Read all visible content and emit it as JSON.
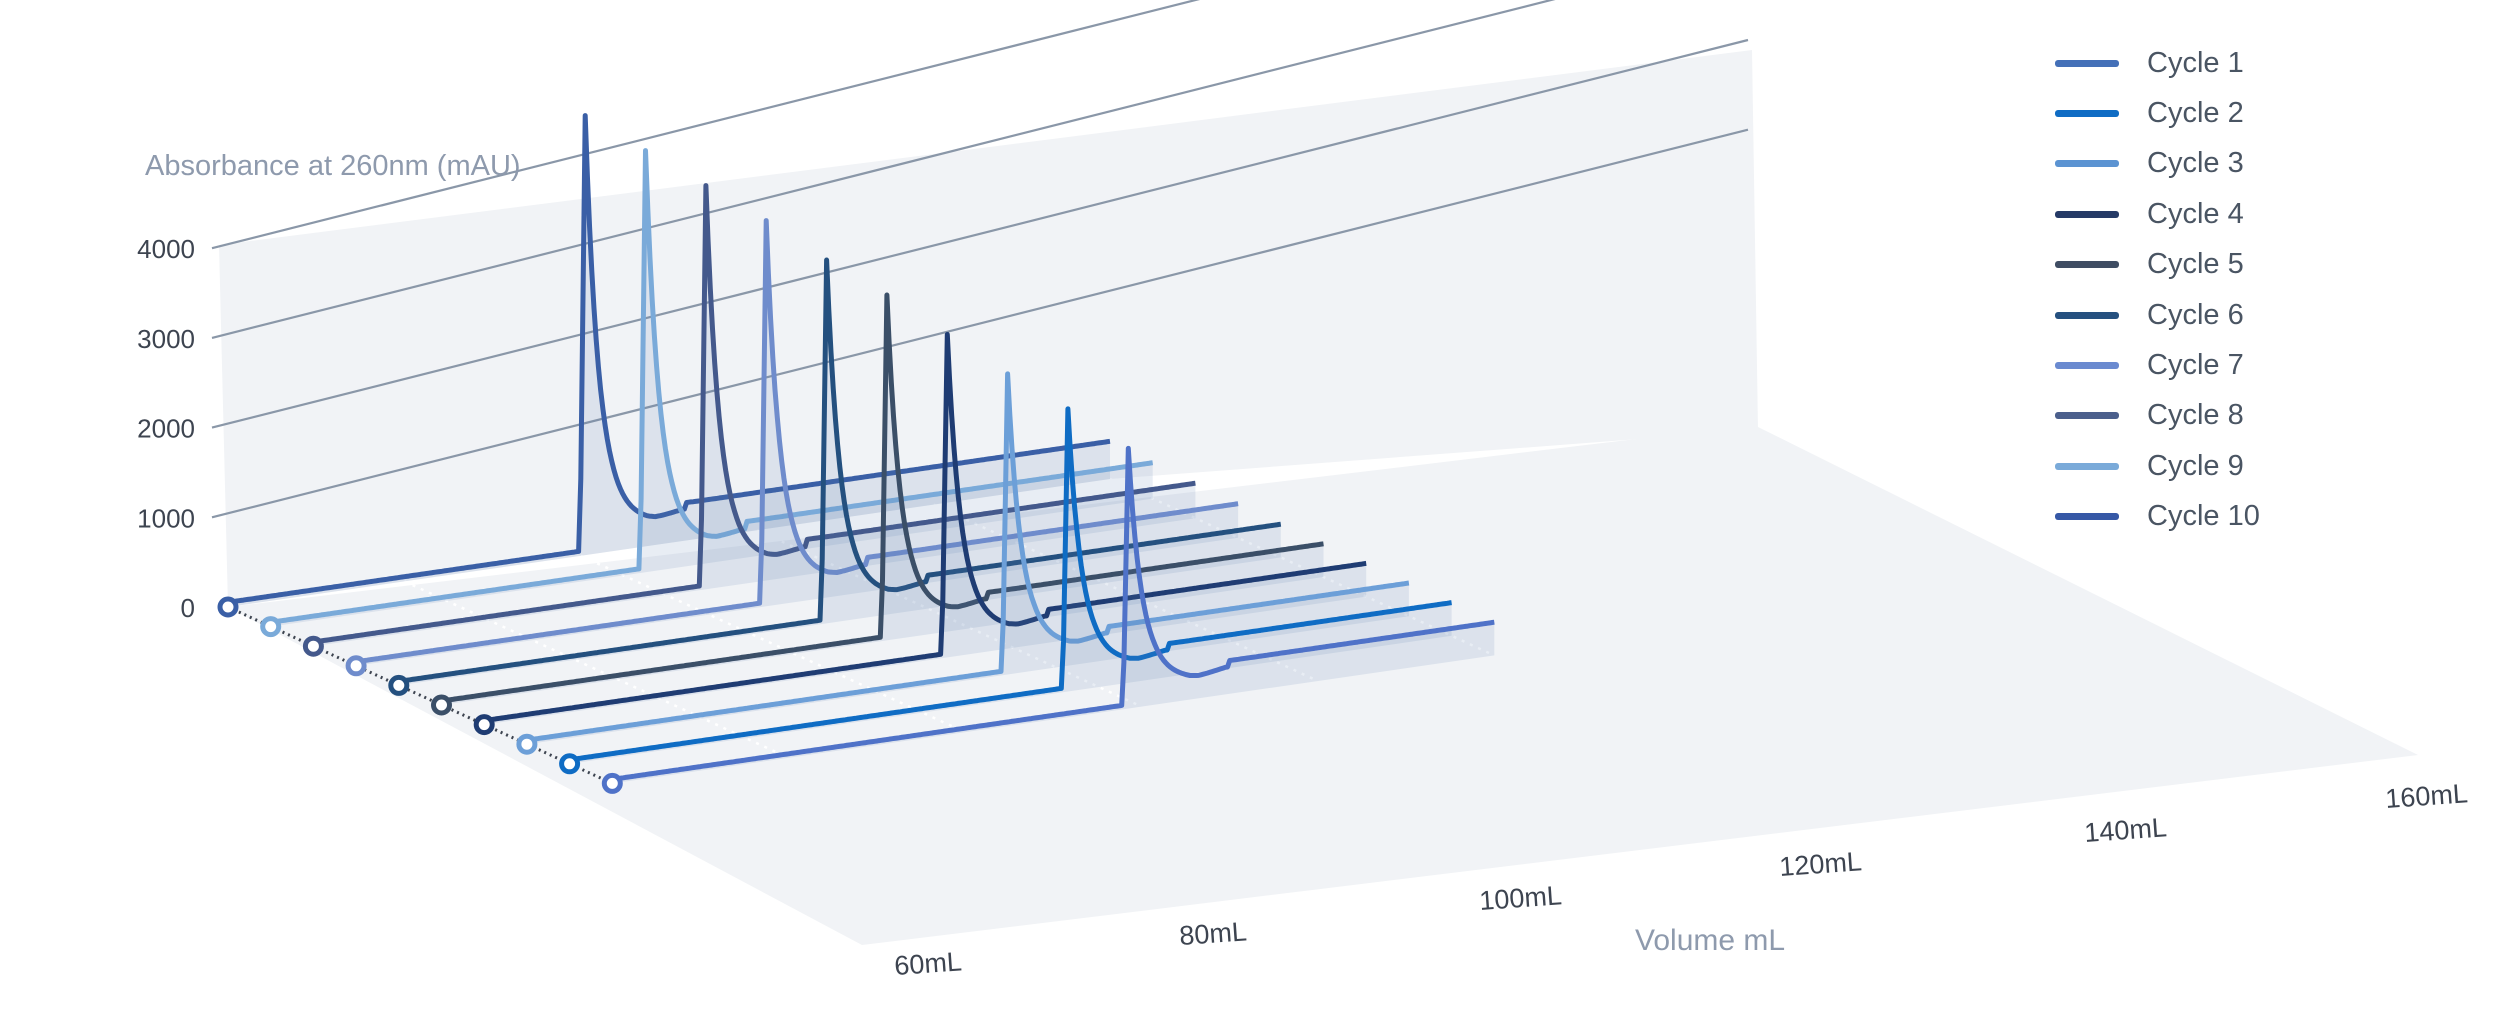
{
  "chart_data": {
    "type": "line",
    "title": "",
    "ylabel": "Absorbance at 260nm (mAU)",
    "xlabel": "Volume mL",
    "y_ticks": [
      "0",
      "1000",
      "2000",
      "3000",
      "4000"
    ],
    "x_ticks": [
      "60mL",
      "80mL",
      "100mL",
      "120mL",
      "140mL",
      "160mL"
    ],
    "x_tick_values": [
      60,
      80,
      100,
      120,
      140,
      160
    ],
    "xlim": [
      60,
      160
    ],
    "ylim": [
      0,
      4000
    ],
    "grid": true,
    "legend_position": "top-right",
    "series": [
      {
        "name": "Cycle 1",
        "color": "#3a5fa6",
        "peak_volume": 100.5,
        "peak_value": 4900,
        "baseline": 350,
        "tail_step_volume": 112,
        "tail_step_value": 420
      },
      {
        "name": "Cycle 2",
        "color": "#7aaad9",
        "peak_volume": 102.5,
        "peak_value": 4700,
        "baseline": 320,
        "tail_step_volume": 114,
        "tail_step_value": 400
      },
      {
        "name": "Cycle 3",
        "color": "#44598c",
        "peak_volume": 104.5,
        "peak_value": 4500,
        "baseline": 310,
        "tail_step_volume": 116,
        "tail_step_value": 390
      },
      {
        "name": "Cycle 4",
        "color": "#6f8ccc",
        "peak_volume": 106.5,
        "peak_value": 4300,
        "baseline": 300,
        "tail_step_volume": 118,
        "tail_step_value": 380
      },
      {
        "name": "Cycle 5",
        "color": "#24507f",
        "peak_volume": 108.5,
        "peak_value": 4050,
        "baseline": 300,
        "tail_step_volume": 120,
        "tail_step_value": 370
      },
      {
        "name": "Cycle 6",
        "color": "#3b4f68",
        "peak_volume": 110.5,
        "peak_value": 3850,
        "baseline": 300,
        "tail_step_volume": 122,
        "tail_step_value": 370
      },
      {
        "name": "Cycle 7",
        "color": "#1f3c73",
        "peak_volume": 112.5,
        "peak_value": 3600,
        "baseline": 300,
        "tail_step_volume": 124,
        "tail_step_value": 370
      },
      {
        "name": "Cycle 8",
        "color": "#6c9fd8",
        "peak_volume": 114.5,
        "peak_value": 3350,
        "baseline": 300,
        "tail_step_volume": 126,
        "tail_step_value": 370
      },
      {
        "name": "Cycle 9",
        "color": "#0f6cc4",
        "peak_volume": 116.5,
        "peak_value": 3150,
        "baseline": 300,
        "tail_step_volume": 128,
        "tail_step_value": 370
      },
      {
        "name": "Cycle 10",
        "color": "#4f72c8",
        "peak_volume": 118.5,
        "peak_value": 2900,
        "baseline": 300,
        "tail_step_volume": 130,
        "tail_step_value": 370
      }
    ]
  },
  "legend": {
    "items": [
      {
        "label": "Cycle 1",
        "color": "#4470b8"
      },
      {
        "label": "Cycle 2",
        "color": "#0f6cc4"
      },
      {
        "label": "Cycle 3",
        "color": "#5b93d2"
      },
      {
        "label": "Cycle 4",
        "color": "#253a66"
      },
      {
        "label": "Cycle 5",
        "color": "#3f4d63"
      },
      {
        "label": "Cycle 6",
        "color": "#25507f"
      },
      {
        "label": "Cycle 7",
        "color": "#6a8ad0"
      },
      {
        "label": "Cycle 8",
        "color": "#4b5f8c"
      },
      {
        "label": "Cycle 9",
        "color": "#7aaad9"
      },
      {
        "label": "Cycle 10",
        "color": "#3658a6"
      }
    ]
  }
}
